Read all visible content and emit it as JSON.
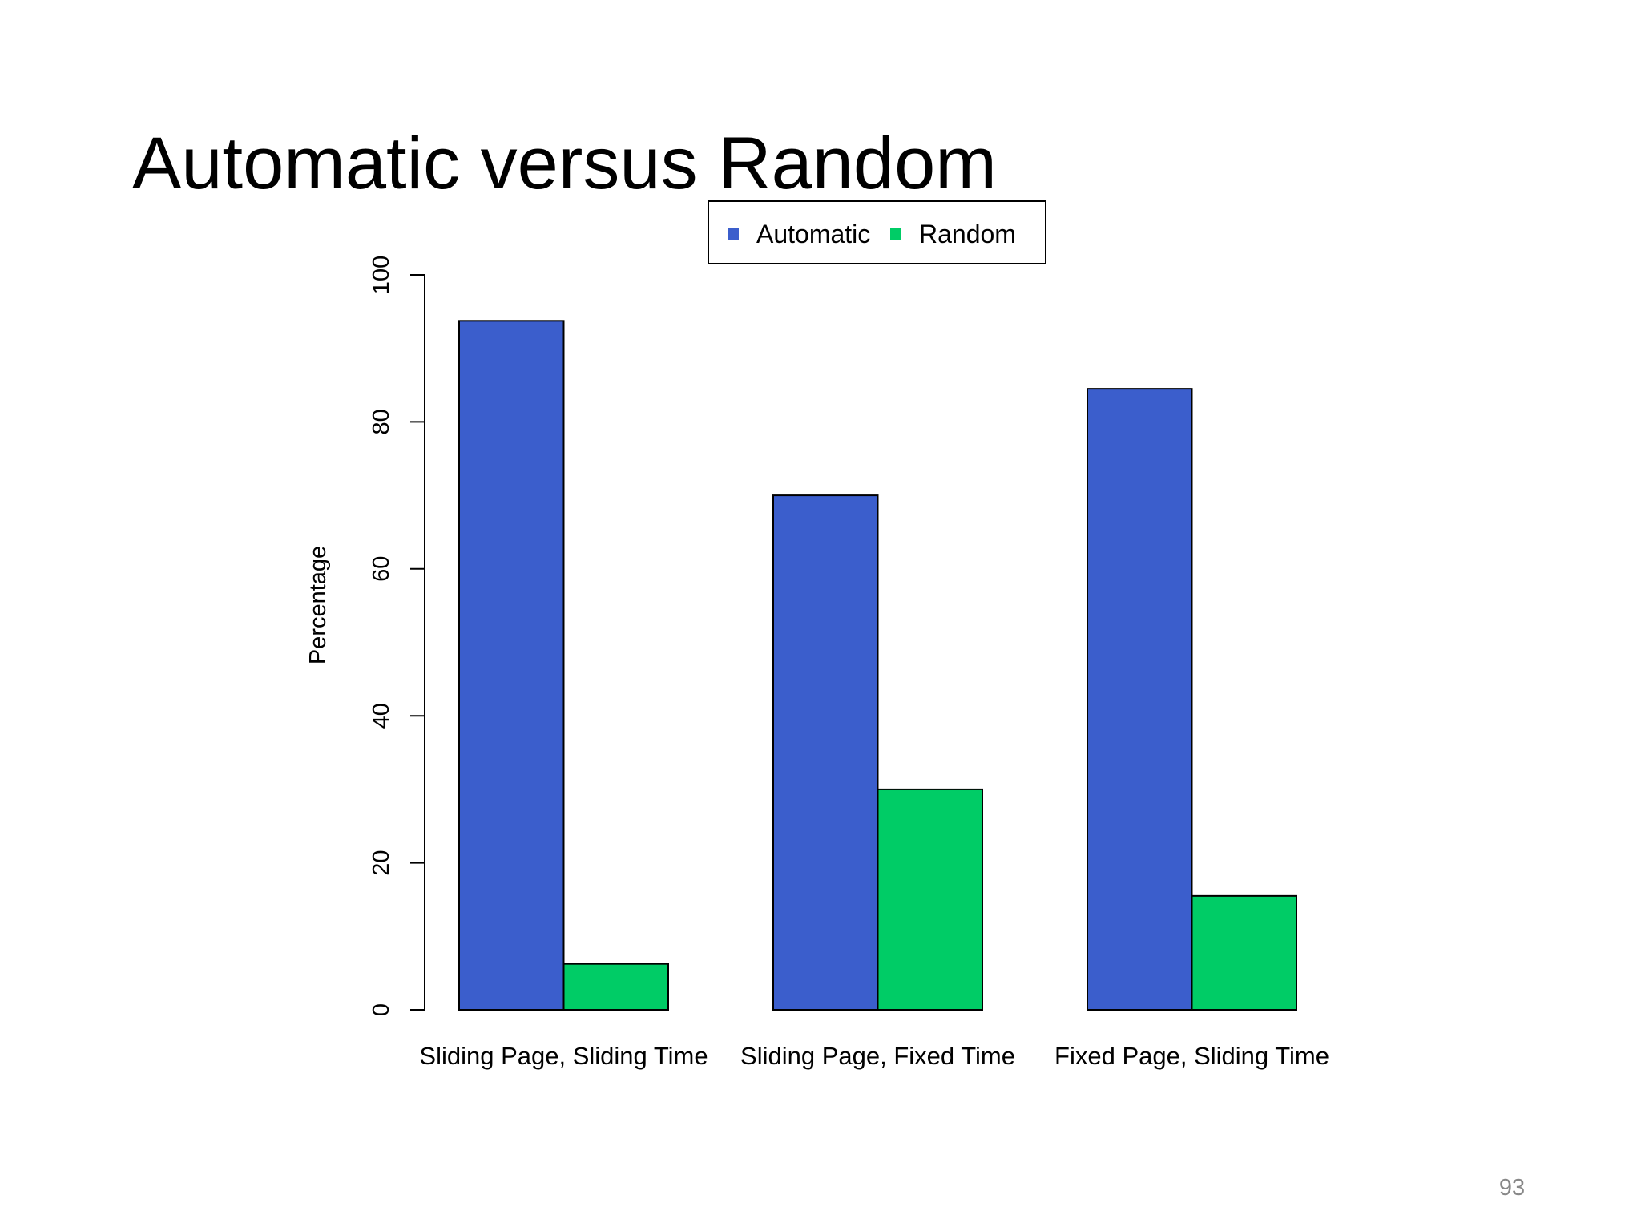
{
  "chart_data": {
    "type": "bar",
    "title": "Automatic versus Random",
    "y_label": "Percentage",
    "categories": [
      "Sliding Page, Sliding Time",
      "Sliding Page, Fixed Time",
      "Fixed Page, Sliding Time"
    ],
    "series": [
      {
        "name": "Automatic",
        "color": "#3b5ecc",
        "values": [
          93.75,
          70,
          84.5
        ]
      },
      {
        "name": "Random",
        "color": "#00cc66",
        "values": [
          6.25,
          30,
          15.5
        ]
      }
    ],
    "ylim": [
      0,
      100
    ],
    "yticks": [
      0,
      20,
      40,
      60,
      80,
      100
    ]
  },
  "page_number": "93"
}
